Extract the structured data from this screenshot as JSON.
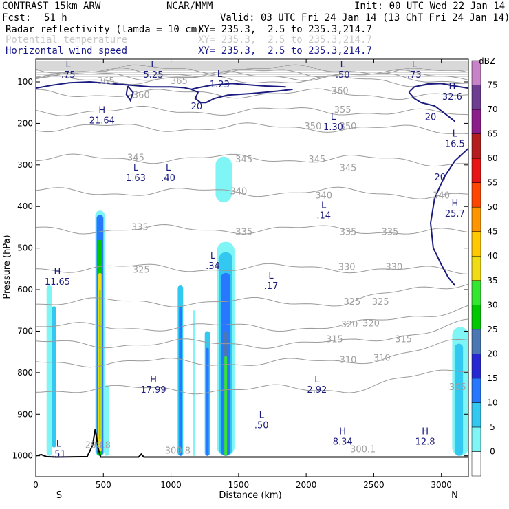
{
  "header": {
    "model": "CONTRAST 15km ARW",
    "org": "NCAR/MMM",
    "init": "Init: 00 UTC Wed 22 Jan 14",
    "fcst_label": "Fcst:",
    "fcst_value": "51 h",
    "valid": "Valid: 03 UTC Fri 24 Jan 14 (13 ChT Fri 24 Jan 14)",
    "field1": "Radar reflectivity (lamda = 10 cm)",
    "field1_xy": "XY= 235.3,  2.5 to 235.3,214.7",
    "field2": "Potential temperature",
    "field2_xy": "XY= 235.3,  2.5 to 235.3,214.7",
    "field3": "Horizontal wind speed",
    "field3_xy": "XY= 235.3,  2.5 to 235.3,214.7"
  },
  "chart_data": {
    "type": "cross-section",
    "xlabel": "Distance (km)",
    "ylabel": "Pressure (hPa)",
    "xlim": [
      0,
      3200
    ],
    "ylim": [
      1000,
      50
    ],
    "x_ticks": [
      0,
      500,
      1000,
      1500,
      2000,
      2500,
      3000
    ],
    "y_ticks": [
      100,
      200,
      300,
      400,
      500,
      600,
      700,
      800,
      900,
      1000
    ],
    "x_end_labels": {
      "left": "S",
      "right": "N"
    },
    "colorbar": {
      "unit": "dBZ",
      "levels": [
        0,
        5,
        10,
        15,
        20,
        25,
        30,
        35,
        40,
        45,
        50,
        55,
        60,
        65,
        70,
        75
      ],
      "colors": [
        "#ffffff",
        "#7ff5f5",
        "#32c8f0",
        "#2878ff",
        "#2828d2",
        "#4b78b4",
        "#00c800",
        "#32e632",
        "#f0dc14",
        "#ffc800",
        "#ff9600",
        "#ff4600",
        "#e61414",
        "#b41e1e",
        "#8c1e8c",
        "#6e3c91",
        "#c882c8"
      ]
    },
    "theta_labels": [
      {
        "v": "365",
        "x": 520,
        "p": 98
      },
      {
        "v": "365",
        "x": 1060,
        "p": 98
      },
      {
        "v": "360",
        "x": 780,
        "p": 132
      },
      {
        "v": "360",
        "x": 2250,
        "p": 122
      },
      {
        "v": "355",
        "x": 2270,
        "p": 168
      },
      {
        "v": "350",
        "x": 2050,
        "p": 208
      },
      {
        "v": "350",
        "x": 2310,
        "p": 208
      },
      {
        "v": "345",
        "x": 740,
        "p": 283
      },
      {
        "v": "345",
        "x": 1540,
        "p": 287
      },
      {
        "v": "345",
        "x": 2080,
        "p": 287
      },
      {
        "v": "345",
        "x": 2310,
        "p": 308
      },
      {
        "v": "340",
        "x": 1500,
        "p": 364
      },
      {
        "v": "340",
        "x": 2130,
        "p": 374
      },
      {
        "v": "340",
        "x": 3000,
        "p": 374
      },
      {
        "v": "335",
        "x": 770,
        "p": 450
      },
      {
        "v": "335",
        "x": 1540,
        "p": 462
      },
      {
        "v": "335",
        "x": 2310,
        "p": 462
      },
      {
        "v": "335",
        "x": 2620,
        "p": 462
      },
      {
        "v": "330",
        "x": 2300,
        "p": 546
      },
      {
        "v": "330",
        "x": 2650,
        "p": 546
      },
      {
        "v": "325",
        "x": 780,
        "p": 553
      },
      {
        "v": "325",
        "x": 2340,
        "p": 630
      },
      {
        "v": "325",
        "x": 2550,
        "p": 630
      },
      {
        "v": "320",
        "x": 2320,
        "p": 684
      },
      {
        "v": "320",
        "x": 2480,
        "p": 682
      },
      {
        "v": "315",
        "x": 2210,
        "p": 720
      },
      {
        "v": "315",
        "x": 2720,
        "p": 720
      },
      {
        "v": "310",
        "x": 2310,
        "p": 770
      },
      {
        "v": "310",
        "x": 2560,
        "p": 765
      },
      {
        "v": "305",
        "x": 3120,
        "p": 835
      },
      {
        "v": "300.8",
        "x": 1050,
        "p": 988
      },
      {
        "v": "298.8",
        "x": 460,
        "p": 975
      },
      {
        "v": "300.1",
        "x": 2420,
        "p": 985
      }
    ],
    "wind_labels": [
      {
        "v": "20",
        "x": 1190,
        "p": 160
      },
      {
        "v": "20",
        "x": 2920,
        "p": 185
      },
      {
        "v": "20",
        "x": 2990,
        "p": 330
      }
    ],
    "extrema": [
      {
        "t": "L",
        "v": ".75",
        "x": 240,
        "p": 72
      },
      {
        "t": "L",
        "v": "5.25",
        "x": 870,
        "p": 72
      },
      {
        "t": "L",
        "v": "1.23",
        "x": 1360,
        "p": 95
      },
      {
        "t": "L",
        "v": ".50",
        "x": 2270,
        "p": 72
      },
      {
        "t": "L",
        "v": ".73",
        "x": 2800,
        "p": 72
      },
      {
        "t": "H",
        "v": "21.64",
        "x": 490,
        "p": 182
      },
      {
        "t": "L",
        "v": "1.30",
        "x": 2200,
        "p": 198
      },
      {
        "t": "H",
        "v": "32.6",
        "x": 3080,
        "p": 125
      },
      {
        "t": "L",
        "v": "16.5",
        "x": 3100,
        "p": 238
      },
      {
        "t": "L",
        "v": "1.63",
        "x": 740,
        "p": 320
      },
      {
        "t": "L",
        "v": ".40",
        "x": 980,
        "p": 320
      },
      {
        "t": "L",
        "v": ".14",
        "x": 2130,
        "p": 410
      },
      {
        "t": "H",
        "v": "25.7",
        "x": 3100,
        "p": 406
      },
      {
        "t": "L",
        "v": ".34",
        "x": 1310,
        "p": 532
      },
      {
        "t": "H",
        "v": "11.65",
        "x": 160,
        "p": 570
      },
      {
        "t": "L",
        "v": ".17",
        "x": 1740,
        "p": 580
      },
      {
        "t": "H",
        "v": "17.99",
        "x": 870,
        "p": 830
      },
      {
        "t": "L",
        "v": "2.92",
        "x": 2080,
        "p": 830
      },
      {
        "t": "L",
        "v": ".50",
        "x": 1670,
        "p": 915
      },
      {
        "t": "L",
        "v": ".51",
        "x": 170,
        "p": 985
      },
      {
        "t": "H",
        "v": "8.34",
        "x": 2270,
        "p": 955
      },
      {
        "t": "H",
        "v": "12.8",
        "x": 2880,
        "p": 955
      }
    ]
  }
}
